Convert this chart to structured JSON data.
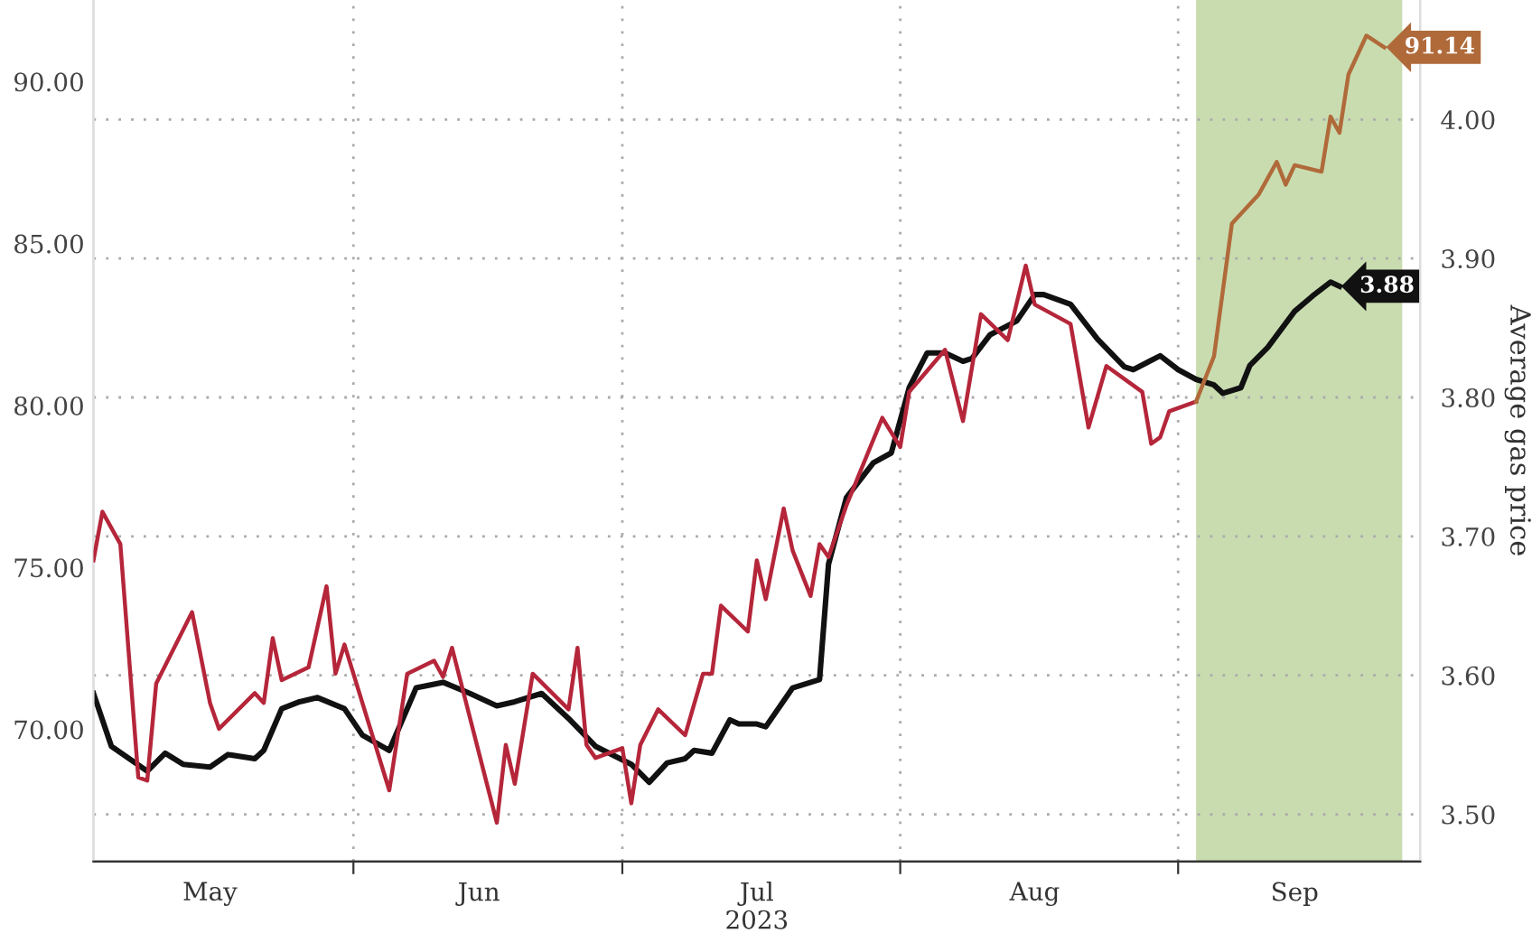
{
  "chart_data": {
    "type": "line",
    "y2label": "Average gas price",
    "xlim": [
      "2023-05-03",
      "2023-09-28"
    ],
    "xticks": [
      {
        "value": "2023-05-16",
        "label": "May"
      },
      {
        "value": "2023-06-01",
        "label": null
      },
      {
        "value": "2023-06-15",
        "label": "Jun"
      },
      {
        "value": "2023-07-01",
        "label": null
      },
      {
        "value": "2023-07-16",
        "label": "Jul\n2023"
      },
      {
        "value": "2023-08-01",
        "label": null
      },
      {
        "value": "2023-08-16",
        "label": "Aug"
      },
      {
        "value": "2023-09-01",
        "label": null
      },
      {
        "value": "2023-09-14",
        "label": "Sep"
      }
    ],
    "ylim": [
      66.0,
      92.6
    ],
    "yticks": [
      {
        "value": 70,
        "label": "70.00"
      },
      {
        "value": 75,
        "label": "75.00"
      },
      {
        "value": 80,
        "label": "80.00"
      },
      {
        "value": 85,
        "label": "85.00"
      },
      {
        "value": 90,
        "label": "90.00"
      }
    ],
    "y2lim": [
      3.466,
      4.086
    ],
    "y2ticks": [
      {
        "value": 3.5,
        "label": "3.50"
      },
      {
        "value": 3.6,
        "label": "3.60"
      },
      {
        "value": 3.7,
        "label": "3.70"
      },
      {
        "value": 3.8,
        "label": "3.80"
      },
      {
        "value": 3.9,
        "label": "3.90"
      },
      {
        "value": 4.0,
        "label": "4.00"
      }
    ],
    "grid": true,
    "marker": "none",
    "line_style": "solid",
    "bands": [
      {
        "axis": "x",
        "from": "2023-09-03",
        "to": "2023-09-26",
        "label": null,
        "color": "#c9dcb0"
      }
    ],
    "series": [
      {
        "color": "#b5263a",
        "axis": "y",
        "x": [
          "2023-05-03",
          "2023-05-04",
          "2023-05-06",
          "2023-05-08",
          "2023-05-09",
          "2023-05-10",
          "2023-05-14",
          "2023-05-16",
          "2023-05-17",
          "2023-05-21",
          "2023-05-22",
          "2023-05-23",
          "2023-05-24",
          "2023-05-27",
          "2023-05-29",
          "2023-05-30",
          "2023-05-31",
          "2023-06-05",
          "2023-06-07",
          "2023-06-10",
          "2023-06-11",
          "2023-06-12",
          "2023-06-17",
          "2023-06-18",
          "2023-06-19",
          "2023-06-21",
          "2023-06-25",
          "2023-06-26",
          "2023-06-27",
          "2023-06-28",
          "2023-07-01",
          "2023-07-02",
          "2023-07-03",
          "2023-07-05",
          "2023-07-08",
          "2023-07-10",
          "2023-07-11",
          "2023-07-12",
          "2023-07-15",
          "2023-07-16",
          "2023-07-17",
          "2023-07-19",
          "2023-07-20",
          "2023-07-22",
          "2023-07-23",
          "2023-07-24",
          "2023-07-26",
          "2023-07-30",
          "2023-08-01",
          "2023-08-02",
          "2023-08-06",
          "2023-08-08",
          "2023-08-10",
          "2023-08-13",
          "2023-08-15",
          "2023-08-16",
          "2023-08-20",
          "2023-08-22",
          "2023-08-24",
          "2023-08-28",
          "2023-08-29",
          "2023-08-30",
          "2023-08-31",
          "2023-09-03"
        ],
        "values": [
          75.3,
          76.8,
          75.8,
          68.6,
          68.5,
          71.5,
          73.7,
          70.9,
          70.1,
          71.2,
          70.9,
          72.9,
          71.6,
          72.0,
          74.5,
          71.8,
          72.7,
          68.2,
          71.8,
          72.2,
          71.7,
          72.6,
          67.2,
          69.6,
          68.4,
          71.8,
          70.7,
          72.6,
          69.6,
          69.2,
          69.5,
          67.8,
          69.6,
          70.7,
          69.9,
          71.8,
          71.8,
          73.9,
          73.1,
          75.3,
          74.1,
          76.9,
          75.6,
          74.2,
          75.8,
          75.4,
          77.0,
          79.7,
          78.8,
          80.5,
          81.8,
          79.6,
          82.9,
          82.1,
          84.4,
          83.2,
          82.6,
          79.4,
          81.3,
          80.5,
          78.9,
          79.1,
          79.9,
          80.2
        ]
      },
      {
        "color": "#b06a3a",
        "axis": "y",
        "x": [
          "2023-09-03",
          "2023-09-05",
          "2023-09-07",
          "2023-09-10",
          "2023-09-12",
          "2023-09-13",
          "2023-09-14",
          "2023-09-17",
          "2023-09-18",
          "2023-09-19",
          "2023-09-20",
          "2023-09-22",
          "2023-09-24"
        ],
        "values": [
          80.2,
          81.6,
          85.7,
          86.6,
          87.6,
          86.9,
          87.5,
          87.3,
          89.0,
          88.5,
          90.3,
          91.5,
          91.14
        ],
        "value_labels": [
          null,
          null,
          null,
          null,
          null,
          null,
          null,
          null,
          null,
          null,
          null,
          null,
          "91.14"
        ]
      },
      {
        "color": "#111111",
        "axis": "y2",
        "x": [
          "2023-05-03",
          "2023-05-05",
          "2023-05-07",
          "2023-05-09",
          "2023-05-11",
          "2023-05-13",
          "2023-05-16",
          "2023-05-18",
          "2023-05-21",
          "2023-05-22",
          "2023-05-24",
          "2023-05-26",
          "2023-05-28",
          "2023-05-31",
          "2023-06-02",
          "2023-06-05",
          "2023-06-08",
          "2023-06-11",
          "2023-06-14",
          "2023-06-17",
          "2023-06-19",
          "2023-06-22",
          "2023-06-25",
          "2023-06-28",
          "2023-07-02",
          "2023-07-04",
          "2023-07-06",
          "2023-07-08",
          "2023-07-09",
          "2023-07-11",
          "2023-07-13",
          "2023-07-14",
          "2023-07-16",
          "2023-07-17",
          "2023-07-20",
          "2023-07-23",
          "2023-07-24",
          "2023-07-26",
          "2023-07-29",
          "2023-07-31",
          "2023-08-02",
          "2023-08-04",
          "2023-08-06",
          "2023-08-08",
          "2023-08-09",
          "2023-08-11",
          "2023-08-14",
          "2023-08-16",
          "2023-08-17",
          "2023-08-20",
          "2023-08-23",
          "2023-08-26",
          "2023-08-27",
          "2023-08-30",
          "2023-09-01",
          "2023-09-03",
          "2023-09-05",
          "2023-09-06",
          "2023-09-08",
          "2023-09-09",
          "2023-09-11",
          "2023-09-14",
          "2023-09-16",
          "2023-09-18",
          "2023-09-19"
        ],
        "values": [
          3.587,
          3.549,
          3.54,
          3.531,
          3.544,
          3.536,
          3.534,
          3.543,
          3.54,
          3.546,
          3.576,
          3.581,
          3.584,
          3.576,
          3.557,
          3.546,
          3.591,
          3.595,
          3.587,
          3.578,
          3.581,
          3.587,
          3.569,
          3.549,
          3.536,
          3.523,
          3.537,
          3.54,
          3.546,
          3.544,
          3.568,
          3.565,
          3.565,
          3.563,
          3.591,
          3.597,
          3.68,
          3.728,
          3.753,
          3.76,
          3.807,
          3.832,
          3.832,
          3.826,
          3.828,
          3.845,
          3.855,
          3.874,
          3.874,
          3.867,
          3.842,
          3.822,
          3.82,
          3.83,
          3.82,
          3.813,
          3.809,
          3.803,
          3.807,
          3.823,
          3.836,
          3.862,
          3.873,
          3.883,
          3.88
        ],
        "value_labels": [
          null,
          null,
          null,
          null,
          null,
          null,
          null,
          null,
          null,
          null,
          null,
          null,
          null,
          null,
          null,
          null,
          null,
          null,
          null,
          null,
          null,
          null,
          null,
          null,
          null,
          null,
          null,
          null,
          null,
          null,
          null,
          null,
          null,
          null,
          null,
          null,
          null,
          null,
          null,
          null,
          null,
          null,
          null,
          null,
          null,
          null,
          null,
          null,
          null,
          null,
          null,
          null,
          null,
          null,
          null,
          null,
          null,
          null,
          null,
          null,
          null,
          null,
          null,
          null,
          "3.88"
        ]
      }
    ]
  }
}
